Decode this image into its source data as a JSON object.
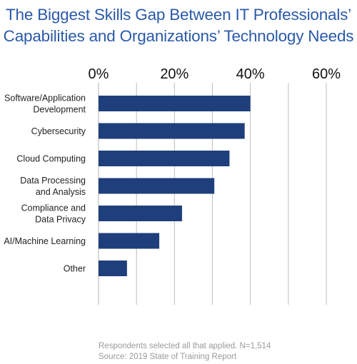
{
  "title": {
    "line1": "The Biggest Skills Gap Between IT Professionals’",
    "line2": "Capabilities and Organizations’ Technology Needs"
  },
  "colors": {
    "title": "#2a5aa8",
    "bar": "#1f3f7c",
    "grid": "#bdbdbd",
    "label": "#222222",
    "footnote": "#9a9a9a"
  },
  "chart_data": {
    "type": "bar",
    "orientation": "horizontal",
    "title": "The Biggest Skills Gap Between IT Professionals’ Capabilities and Organizations’ Technology Needs",
    "categories": [
      [
        "Software/Application",
        "Development"
      ],
      [
        "Cybersecurity"
      ],
      [
        "Cloud Computing"
      ],
      [
        "Data Processing",
        "and Analysis"
      ],
      [
        "Compliance and",
        "Data Privacy"
      ],
      [
        "AI/Machine Learning"
      ],
      [
        "Other"
      ]
    ],
    "values": [
      40,
      38.5,
      34.5,
      30.5,
      22,
      16,
      7.5
    ],
    "x_ticks": [
      0,
      20,
      40,
      60
    ],
    "x_tick_labels": [
      "0%",
      "20%",
      "40%",
      "60%"
    ],
    "xlim": [
      0,
      60
    ],
    "grid": true,
    "legend": "none"
  },
  "footnote": {
    "line1": "Respondents selected all that applied. N=1,514",
    "line2": "Source: 2019 State of Training Report"
  }
}
